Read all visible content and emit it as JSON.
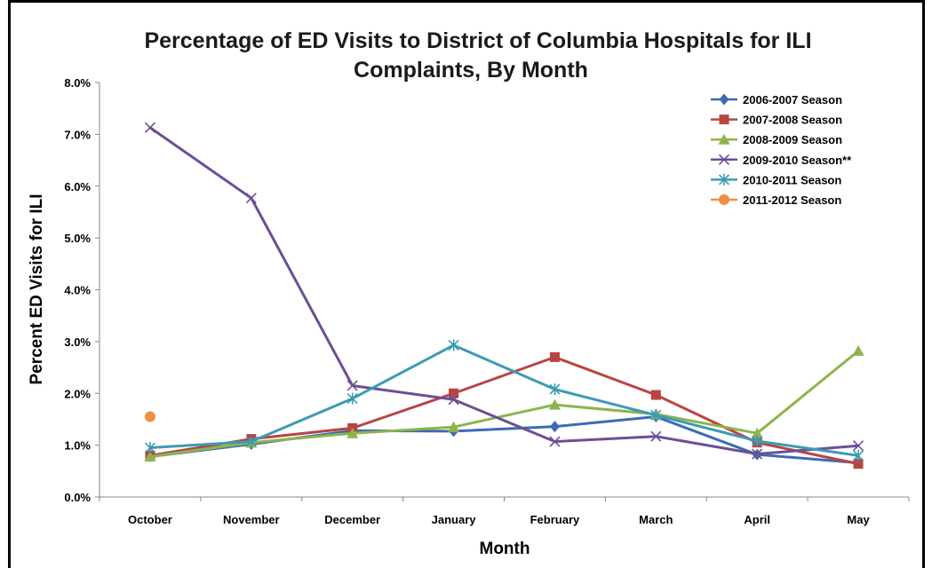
{
  "chart_data": {
    "type": "line",
    "title_lines": [
      "Percentage of ED Visits to District of Columbia Hospitals for ILI",
      "Complaints, By Month"
    ],
    "xlabel": "Month",
    "ylabel": "Percent ED Visits for ILI",
    "categories": [
      "October",
      "November",
      "December",
      "January",
      "February",
      "March",
      "April",
      "May"
    ],
    "ylim": [
      0,
      8
    ],
    "yticks": [
      "0.0%",
      "1.0%",
      "2.0%",
      "3.0%",
      "4.0%",
      "5.0%",
      "6.0%",
      "7.0%",
      "8.0%"
    ],
    "grid": false,
    "legend_position": "top-right",
    "series": [
      {
        "name": "2006-2007 Season",
        "color": "#3d6bb3",
        "marker": "diamond",
        "values": [
          0.78,
          1.02,
          1.28,
          1.27,
          1.36,
          1.55,
          0.82,
          0.66
        ]
      },
      {
        "name": "2007-2008 Season",
        "color": "#b84543",
        "marker": "square",
        "values": [
          0.8,
          1.12,
          1.33,
          2.0,
          2.7,
          1.97,
          1.05,
          0.64
        ]
      },
      {
        "name": "2008-2009 Season",
        "color": "#8db44c",
        "marker": "triangle",
        "values": [
          0.78,
          1.05,
          1.23,
          1.35,
          1.78,
          1.6,
          1.23,
          2.82
        ]
      },
      {
        "name": "2009-2010 Season**",
        "color": "#6c4f95",
        "marker": "x",
        "values": [
          7.13,
          5.77,
          2.15,
          1.88,
          1.07,
          1.17,
          0.83,
          0.99
        ]
      },
      {
        "name": "2010-2011 Season",
        "color": "#3c9bb5",
        "marker": "star",
        "values": [
          0.95,
          1.07,
          1.9,
          2.93,
          2.08,
          1.58,
          1.08,
          0.8
        ]
      },
      {
        "name": "2011-2012 Season",
        "color": "#ee8f42",
        "marker": "circle",
        "values": [
          1.55,
          null,
          null,
          null,
          null,
          null,
          null,
          null
        ]
      }
    ]
  }
}
